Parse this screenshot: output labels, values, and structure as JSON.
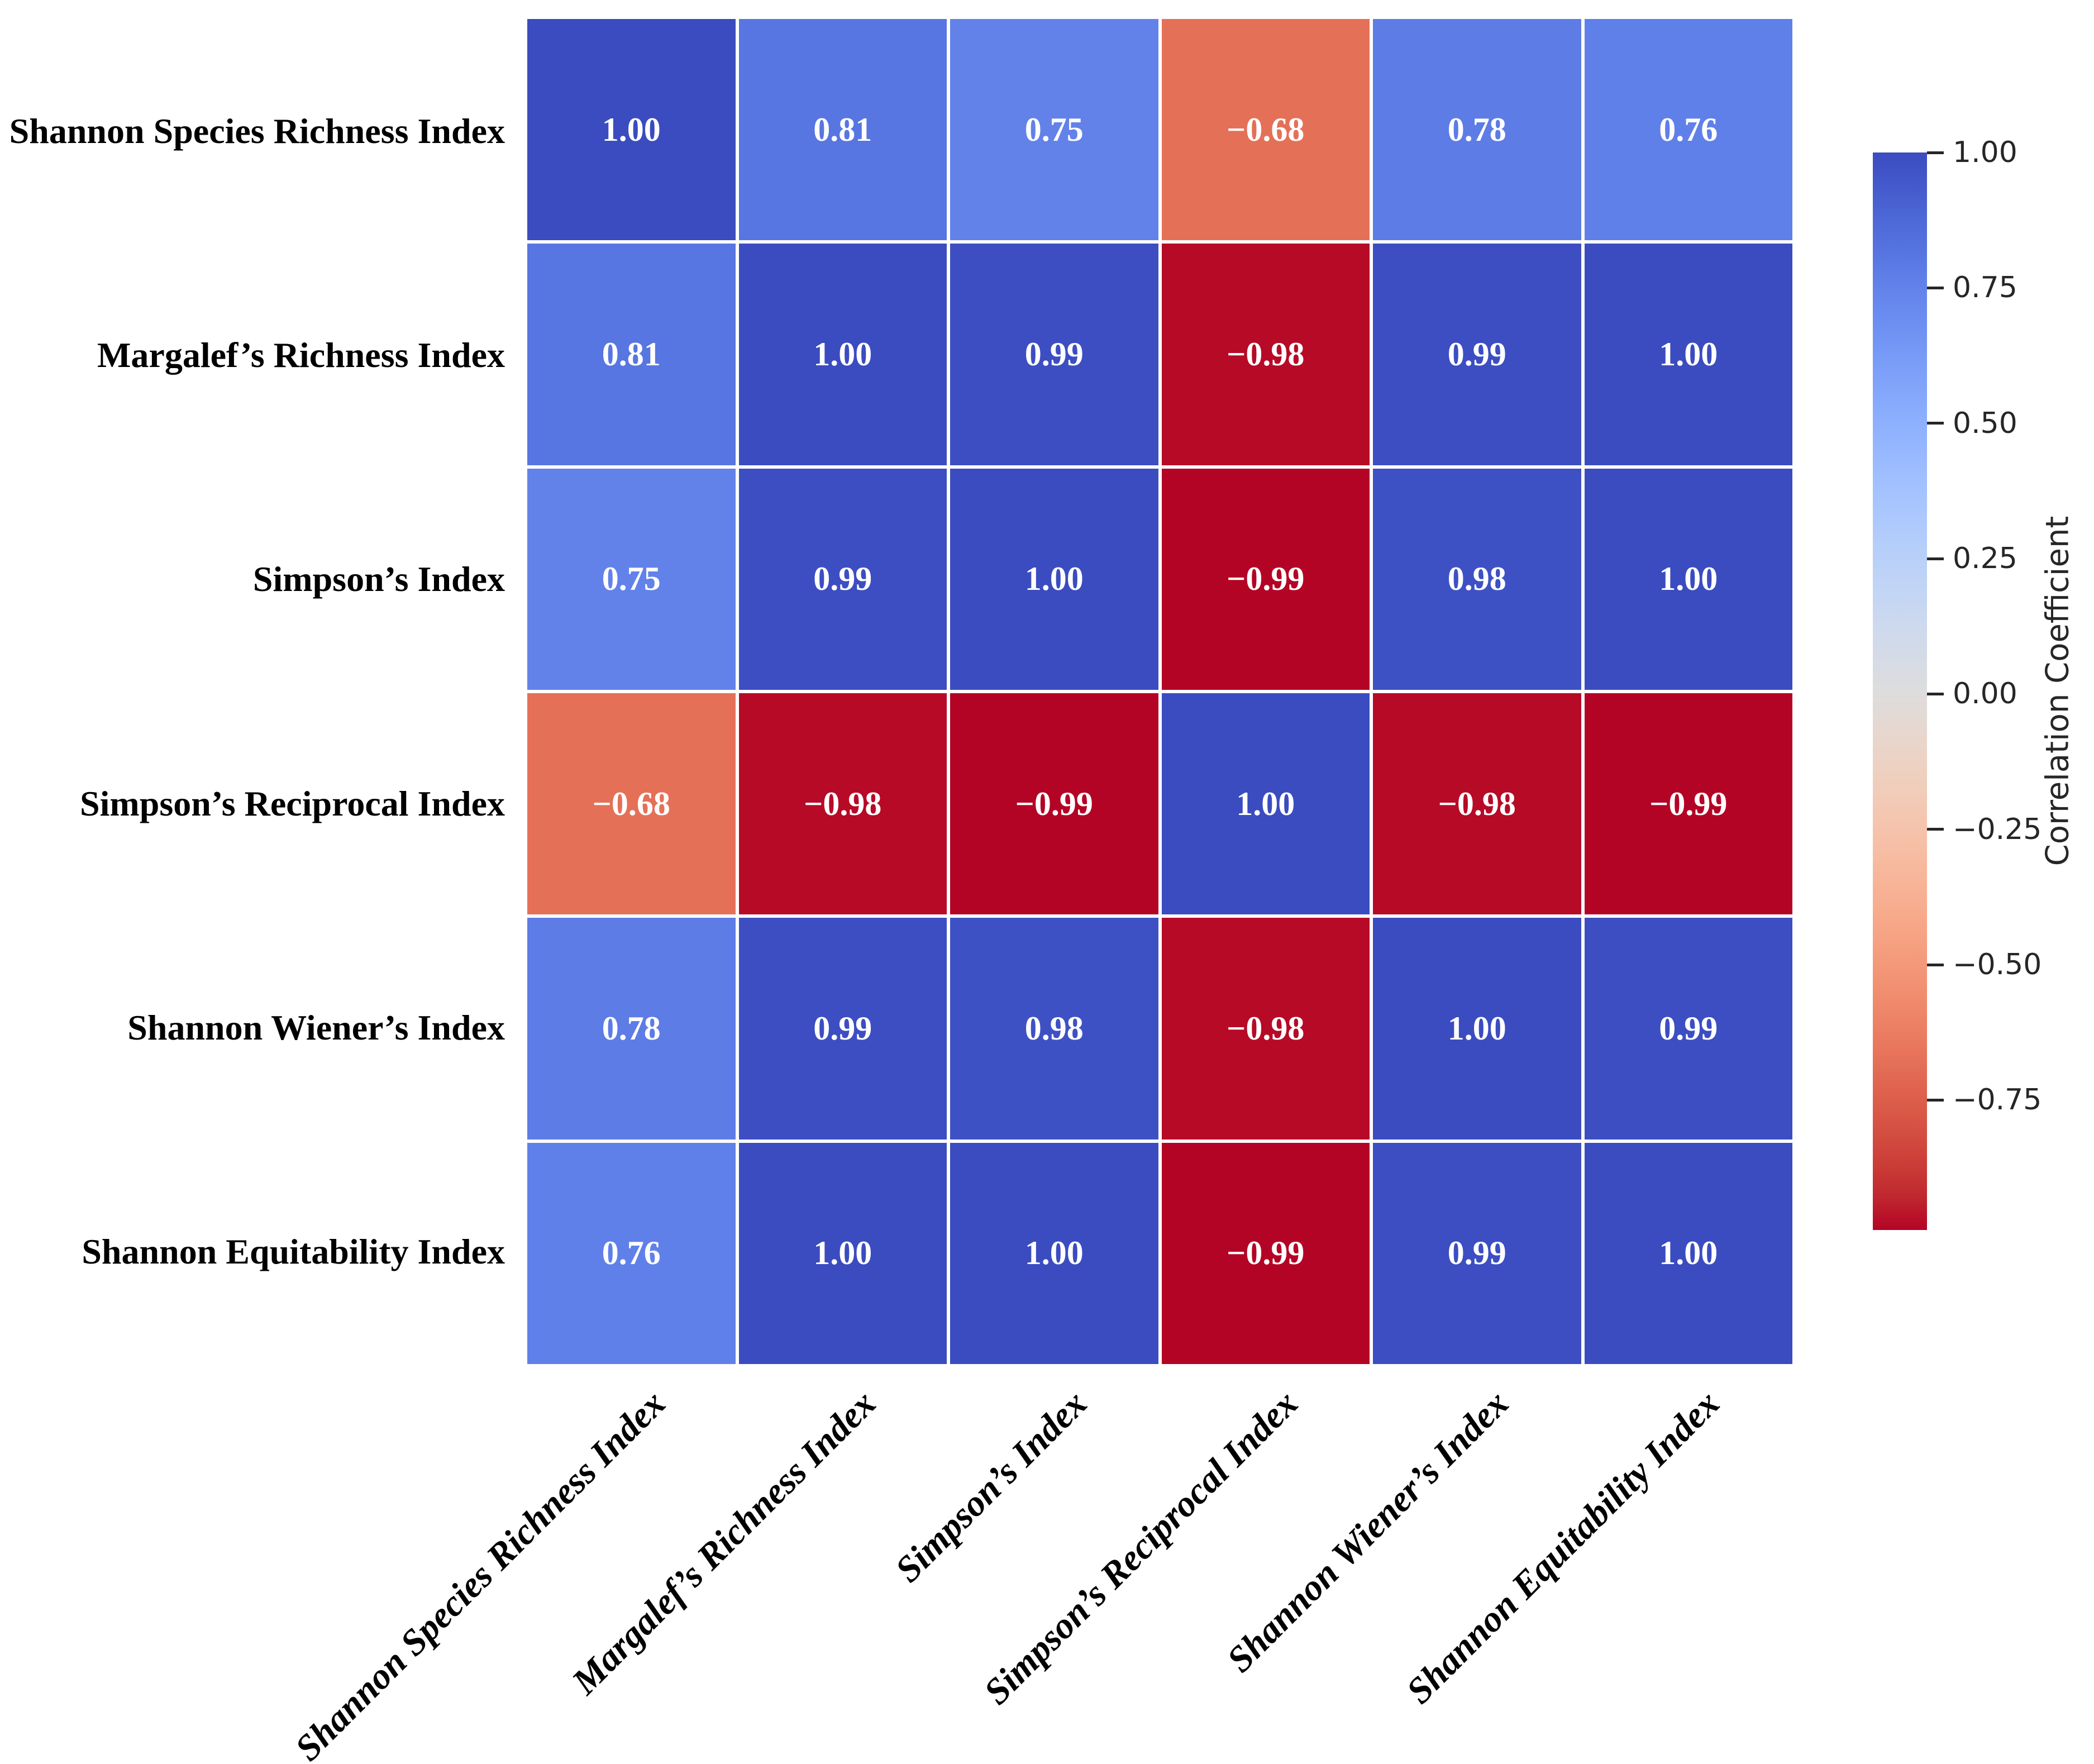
{
  "chart_data": {
    "type": "heatmap",
    "title": "",
    "x_categories": [
      "Shannon Species Richness Index",
      "Margalef’s Richness Index",
      "Simpson’s Index",
      "Simpson’s Reciprocal Index",
      "Shannon Wiener’s Index",
      "Shannon Equitability Index"
    ],
    "y_categories": [
      "Shannon Species Richness Index",
      "Margalef’s Richness Index",
      "Simpson’s Index",
      "Simpson’s Reciprocal Index",
      "Shannon Wiener’s Index",
      "Shannon Equitability Index"
    ],
    "matrix": [
      [
        1.0,
        0.81,
        0.75,
        -0.68,
        0.78,
        0.76
      ],
      [
        0.81,
        1.0,
        0.99,
        -0.98,
        0.99,
        1.0
      ],
      [
        0.75,
        0.99,
        1.0,
        -0.99,
        0.98,
        1.0
      ],
      [
        -0.68,
        -0.98,
        -0.99,
        1.0,
        -0.98,
        -0.99
      ],
      [
        0.78,
        0.99,
        0.98,
        -0.98,
        1.0,
        0.99
      ],
      [
        0.76,
        1.0,
        1.0,
        -0.99,
        0.99,
        1.0
      ]
    ],
    "cell_labels": [
      [
        "1.00",
        "0.81",
        "0.75",
        "−0.68",
        "0.78",
        "0.76"
      ],
      [
        "0.81",
        "1.00",
        "0.99",
        "−0.98",
        "0.99",
        "1.00"
      ],
      [
        "0.75",
        "0.99",
        "1.00",
        "−0.99",
        "0.98",
        "1.00"
      ],
      [
        "−0.68",
        "−0.98",
        "−0.99",
        "1.00",
        "−0.98",
        "−0.99"
      ],
      [
        "0.78",
        "0.99",
        "0.98",
        "−0.98",
        "1.00",
        "0.99"
      ],
      [
        "0.76",
        "1.00",
        "1.00",
        "−0.99",
        "0.99",
        "1.00"
      ]
    ],
    "colormap": "coolwarm reversed (blue = +1, red = -1)",
    "vmin": -0.99,
    "vmax": 1.0,
    "grid": "white gridlines between cells, no axis ticks",
    "colorbar": {
      "label": "Correlation Coefficient",
      "position": "right",
      "tick_values": [
        1.0,
        0.75,
        0.5,
        0.25,
        0.0,
        -0.25,
        -0.5,
        -0.75
      ],
      "tick_labels": [
        "1.00",
        "0.75",
        "0.50",
        "0.25",
        "0.00",
        "−0.25",
        "−0.50",
        "−0.75"
      ]
    },
    "styles": {
      "strong_positive_color": "#3B4CC0",
      "neutral_color": "#DDDDDD",
      "strong_negative_color": "#B40426",
      "moderate_positive_color": "#5876E1",
      "moderate_negative_color": "#E57058",
      "cell_text_color": "#FFFFFF",
      "axis_text_color": "#000000",
      "colorbar_text_color": "#262626",
      "background": "#FFFFFF"
    }
  }
}
